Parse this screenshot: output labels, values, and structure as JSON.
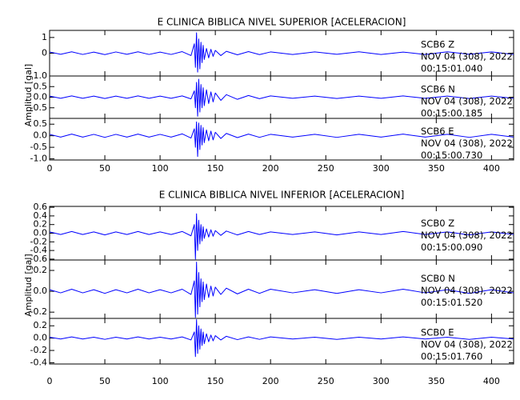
{
  "chart_data": [
    {
      "type": "line",
      "title": "E CLINICA BIBLICA NIVEL SUPERIOR [ACELERACION]",
      "y_label": "Amplitud [gal]",
      "xlim": [
        0,
        420
      ],
      "xticks": [
        0,
        50,
        100,
        150,
        200,
        250,
        300,
        350,
        400
      ],
      "x": [
        0,
        10,
        20,
        30,
        40,
        50,
        60,
        70,
        80,
        90,
        100,
        110,
        120,
        128,
        131,
        132,
        133,
        134,
        135,
        136,
        137,
        138,
        139,
        140,
        142,
        144,
        146,
        148,
        150,
        155,
        160,
        170,
        180,
        190,
        200,
        220,
        240,
        260,
        280,
        300,
        320,
        340,
        360,
        380,
        400,
        420
      ],
      "panels": [
        {
          "annotation": [
            "SCB6   Z",
            "NOV 04 (308), 2022",
            "00:15:01.040"
          ],
          "ylim": [
            -1.45,
            1.45
          ],
          "yticks": [
            0,
            1
          ],
          "series": [
            {
              "color": "#0000ff",
              "values": [
                0.08,
                -0.07,
                0.09,
                -0.08,
                0.07,
                -0.09,
                0.08,
                -0.07,
                0.09,
                -0.08,
                0.07,
                -0.08,
                0.1,
                -0.15,
                0.6,
                -0.9,
                1.3,
                -1.2,
                0.9,
                -1.0,
                0.7,
                -0.6,
                0.5,
                -0.4,
                0.3,
                -0.3,
                0.25,
                -0.2,
                0.18,
                -0.15,
                0.12,
                -0.1,
                0.1,
                -0.09,
                0.08,
                -0.08,
                0.08,
                -0.07,
                0.09,
                -0.08,
                0.07,
                -0.08,
                0.09,
                -0.07,
                0.08,
                -0.08
              ]
            }
          ]
        },
        {
          "annotation": [
            "SCB6   N",
            "NOV 04 (308), 2022",
            "00:15:00.185"
          ],
          "ylim": [
            -1.0,
            1.0
          ],
          "yticks": [
            {
              "value": 1,
              "label": "1.0"
            },
            0.5,
            {
              "value": 0,
              "label": "0.0"
            },
            -0.5
          ],
          "series": [
            {
              "color": "#0000ff",
              "values": [
                0.05,
                -0.05,
                0.06,
                -0.05,
                0.05,
                -0.06,
                0.05,
                -0.05,
                0.06,
                -0.05,
                0.05,
                -0.05,
                0.06,
                -0.08,
                0.3,
                -0.5,
                0.7,
                -0.9,
                0.85,
                -0.7,
                0.6,
                -0.5,
                0.45,
                -0.4,
                0.35,
                -0.3,
                0.25,
                -0.22,
                0.2,
                -0.15,
                0.12,
                -0.1,
                0.08,
                -0.07,
                0.06,
                -0.05,
                0.05,
                -0.06,
                0.05,
                -0.05,
                0.06,
                -0.05,
                0.05,
                -0.06,
                0.05,
                -0.05
              ]
            }
          ]
        },
        {
          "annotation": [
            "SCB6   E",
            "NOV 04 (308), 2022",
            "00:15:00.730"
          ],
          "ylim": [
            -1.05,
            0.75
          ],
          "yticks": [
            0.5,
            {
              "value": 0,
              "label": "0.0"
            },
            -0.5,
            {
              "value": -1,
              "label": "-1.0"
            }
          ],
          "series": [
            {
              "color": "#0000ff",
              "values": [
                0.06,
                -0.06,
                0.07,
                -0.06,
                0.06,
                -0.07,
                0.06,
                -0.06,
                0.07,
                -0.06,
                0.06,
                -0.06,
                0.08,
                -0.1,
                0.3,
                -0.5,
                0.6,
                -0.9,
                0.55,
                -0.6,
                0.45,
                -0.4,
                0.35,
                -0.3,
                0.25,
                -0.22,
                0.2,
                -0.18,
                0.15,
                -0.12,
                0.1,
                -0.08,
                0.07,
                -0.07,
                0.06,
                -0.06,
                0.06,
                -0.07,
                0.06,
                -0.06,
                0.07,
                -0.06,
                0.06,
                -0.07,
                0.06,
                -0.06
              ]
            }
          ]
        }
      ]
    },
    {
      "type": "line",
      "title": "E CLINICA BIBLICA NIVEL INFERIOR [ACELERACION]",
      "y_label": "Amplitud [gal]",
      "xlim": [
        0,
        420
      ],
      "xticks": [
        0,
        50,
        100,
        150,
        200,
        250,
        300,
        350,
        400
      ],
      "x": [
        0,
        10,
        20,
        30,
        40,
        50,
        60,
        70,
        80,
        90,
        100,
        110,
        120,
        128,
        131,
        132,
        133,
        134,
        135,
        136,
        137,
        138,
        139,
        140,
        142,
        144,
        146,
        148,
        150,
        155,
        160,
        170,
        180,
        190,
        200,
        220,
        240,
        260,
        280,
        300,
        320,
        340,
        360,
        380,
        400,
        420
      ],
      "panels": [
        {
          "annotation": [
            "SCB0   Z",
            "NOV 04 (308), 2022",
            "00:15:00.090"
          ],
          "ylim": [
            -0.62,
            0.62
          ],
          "yticks": [
            0.6,
            0.4,
            0.2,
            {
              "value": 0,
              "label": "0.0"
            },
            -0.2,
            -0.4,
            -0.6
          ],
          "series": [
            {
              "color": "#0000ff",
              "values": [
                0.03,
                -0.03,
                0.04,
                -0.03,
                0.03,
                -0.04,
                0.03,
                -0.03,
                0.04,
                -0.03,
                0.03,
                -0.03,
                0.04,
                -0.06,
                0.2,
                -0.6,
                0.45,
                -0.4,
                0.3,
                -0.25,
                0.2,
                -0.18,
                0.15,
                -0.12,
                0.1,
                -0.09,
                0.08,
                -0.07,
                0.06,
                -0.05,
                0.05,
                -0.04,
                0.04,
                -0.03,
                0.03,
                -0.03,
                0.03,
                -0.04,
                0.03,
                -0.03,
                0.04,
                -0.03,
                0.03,
                -0.04,
                0.03,
                -0.03
              ]
            }
          ]
        },
        {
          "annotation": [
            "SCB0   N",
            "NOV 04 (308), 2022",
            "00:15:01.520"
          ],
          "ylim": [
            -0.26,
            0.3
          ],
          "yticks": [
            0.2,
            {
              "value": 0,
              "label": "0.0"
            },
            -0.2
          ],
          "series": [
            {
              "color": "#0000ff",
              "values": [
                0.015,
                -0.015,
                0.02,
                -0.015,
                0.015,
                -0.02,
                0.015,
                -0.015,
                0.02,
                -0.015,
                0.015,
                -0.015,
                0.02,
                -0.03,
                0.1,
                -0.25,
                0.28,
                -0.22,
                0.18,
                -0.15,
                0.12,
                -0.1,
                0.09,
                -0.08,
                0.07,
                -0.06,
                0.05,
                -0.045,
                0.04,
                -0.03,
                0.03,
                -0.025,
                0.02,
                -0.02,
                0.02,
                -0.015,
                0.015,
                -0.02,
                0.015,
                -0.015,
                0.02,
                -0.015,
                0.015,
                -0.02,
                0.015,
                -0.015
              ]
            }
          ]
        },
        {
          "annotation": [
            "SCB0   E",
            "NOV 04 (308), 2022",
            "00:15:01.760"
          ],
          "ylim": [
            -0.42,
            0.32
          ],
          "yticks": [
            0.2,
            {
              "value": 0,
              "label": "0.0"
            },
            -0.2,
            -0.4
          ],
          "series": [
            {
              "color": "#0000ff",
              "values": [
                0.015,
                -0.015,
                0.02,
                -0.015,
                0.015,
                -0.02,
                0.015,
                -0.015,
                0.02,
                -0.015,
                0.015,
                -0.015,
                0.02,
                -0.03,
                0.1,
                -0.3,
                0.3,
                -0.25,
                0.2,
                -0.18,
                0.15,
                -0.12,
                0.1,
                -0.09,
                0.07,
                -0.06,
                0.05,
                -0.045,
                0.04,
                -0.03,
                0.03,
                -0.025,
                0.02,
                -0.02,
                0.02,
                -0.015,
                0.015,
                -0.02,
                0.015,
                -0.015,
                0.02,
                -0.015,
                0.015,
                -0.02,
                0.015,
                -0.015
              ]
            }
          ]
        }
      ]
    }
  ]
}
